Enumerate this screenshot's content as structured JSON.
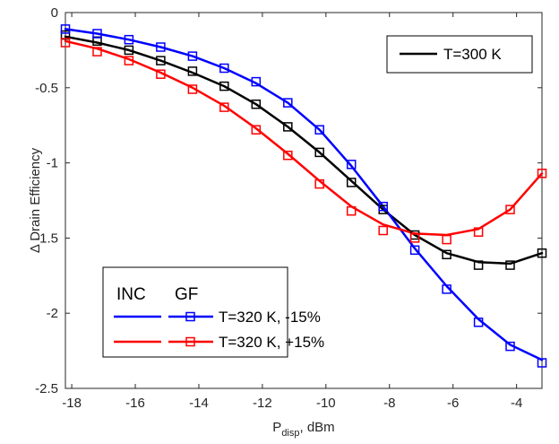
{
  "chart_data": {
    "type": "line",
    "title": "",
    "xlabel_main": "P",
    "xlabel_sub": "disp",
    "xlabel_tail": ", dBm",
    "ylabel": "Δ Drain Efficiency",
    "xlim": [
      -18.2,
      -3.2
    ],
    "ylim": [
      -2.5,
      0
    ],
    "xticks": [
      -18,
      -16,
      -14,
      -12,
      -10,
      -8,
      -6,
      -4
    ],
    "yticks": [
      0,
      -0.5,
      -1,
      -1.5,
      -2,
      -2.5
    ],
    "xtick_labels": [
      "-18",
      "-16",
      "-14",
      "-12",
      "-10",
      "-8",
      "-6",
      "-4"
    ],
    "ytick_labels": [
      "0",
      "-0.5",
      "-1",
      "-1.5",
      "-2",
      "-2.5"
    ],
    "grid": false,
    "x_gf": [
      -18.2,
      -17.2,
      -16.2,
      -15.2,
      -14.2,
      -13.2,
      -12.2,
      -11.2,
      -10.2,
      -9.2,
      -8.2,
      -7.2,
      -6.2,
      -5.2,
      -4.2,
      -3.2
    ],
    "series": [
      {
        "name": "T=300 K",
        "color": "#000000",
        "inc_x": [
          -18.2,
          -17.2,
          -16.2,
          -15.2,
          -14.2,
          -13.2,
          -12.2,
          -11.2,
          -10.2,
          -9.2,
          -8.2,
          -7.2,
          -6.2,
          -5.2,
          -4.2,
          -3.2
        ],
        "inc_y": [
          -0.16,
          -0.2,
          -0.25,
          -0.32,
          -0.4,
          -0.49,
          -0.61,
          -0.76,
          -0.93,
          -1.12,
          -1.31,
          -1.48,
          -1.6,
          -1.66,
          -1.67,
          -1.6
        ],
        "gf_y": [
          -0.15,
          -0.19,
          -0.25,
          -0.32,
          -0.39,
          -0.49,
          -0.61,
          -0.76,
          -0.93,
          -1.13,
          -1.31,
          -1.48,
          -1.61,
          -1.68,
          -1.68,
          -1.6
        ]
      },
      {
        "name": "T=320 K, -15%",
        "color": "#0000ff",
        "inc_x": [
          -18.2,
          -17.2,
          -16.2,
          -15.2,
          -14.2,
          -13.2,
          -12.2,
          -11.2,
          -10.2,
          -9.2,
          -8.2,
          -7.2,
          -6.2,
          -5.2,
          -4.2,
          -3.2
        ],
        "inc_y": [
          -0.11,
          -0.14,
          -0.18,
          -0.23,
          -0.29,
          -0.37,
          -0.47,
          -0.6,
          -0.78,
          -1.02,
          -1.29,
          -1.57,
          -1.82,
          -2.04,
          -2.21,
          -2.31
        ],
        "gf_y": [
          -0.11,
          -0.14,
          -0.18,
          -0.23,
          -0.29,
          -0.37,
          -0.46,
          -0.6,
          -0.78,
          -1.01,
          -1.29,
          -1.58,
          -1.84,
          -2.06,
          -2.22,
          -2.33
        ]
      },
      {
        "name": "T=320 K, +15%",
        "color": "#ff0000",
        "inc_x": [
          -18.2,
          -17.2,
          -16.2,
          -15.2,
          -14.2,
          -13.2,
          -12.2,
          -11.2,
          -10.2,
          -9.2,
          -8.2,
          -7.2,
          -6.2,
          -5.2,
          -4.2,
          -3.2
        ],
        "inc_y": [
          -0.19,
          -0.24,
          -0.31,
          -0.4,
          -0.5,
          -0.62,
          -0.77,
          -0.94,
          -1.12,
          -1.29,
          -1.41,
          -1.47,
          -1.48,
          -1.44,
          -1.31,
          -1.07
        ],
        "gf_y": [
          -0.2,
          -0.26,
          -0.32,
          -0.41,
          -0.51,
          -0.63,
          -0.78,
          -0.95,
          -1.14,
          -1.32,
          -1.45,
          -1.5,
          -1.51,
          -1.46,
          -1.31,
          -1.07
        ]
      }
    ],
    "legend_top_right": {
      "label": "T=300 K"
    },
    "legend_bottom_left": {
      "col_inc": "INC",
      "col_gf": "GF",
      "rows": [
        "T=320 K, -15%",
        "T=320 K, +15%"
      ]
    }
  }
}
